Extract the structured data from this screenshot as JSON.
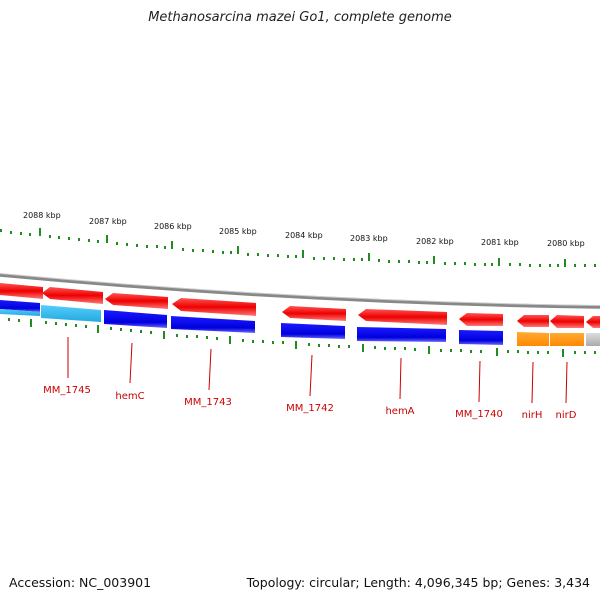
{
  "title": "Methanosarcina mazei Go1, complete genome",
  "footer": {
    "accession": "Accession: NC_003901",
    "summary": "Topology: circular; Length: 4,096,345 bp; Genes: 3,434"
  },
  "scale_labels": [
    "2088 kbp",
    "2087 kbp",
    "2086 kbp",
    "2085 kbp",
    "2084 kbp",
    "2083 kbp",
    "2082 kbp",
    "2081 kbp",
    "2080 kbp"
  ],
  "gene_labels": [
    "MM_1745",
    "hemC",
    "MM_1743",
    "MM_1742",
    "hemA",
    "MM_1740",
    "nirH",
    "nirD"
  ],
  "colors": {
    "forward_gene": "#ee0000",
    "cds_blue": "#0000dd",
    "cds_cyan": "#33bbee",
    "cds_orange": "#ff8c00",
    "cds_gray": "#bbbbbb",
    "tick": "#228b22",
    "label": "#cc0000",
    "backbone": "#999999"
  }
}
